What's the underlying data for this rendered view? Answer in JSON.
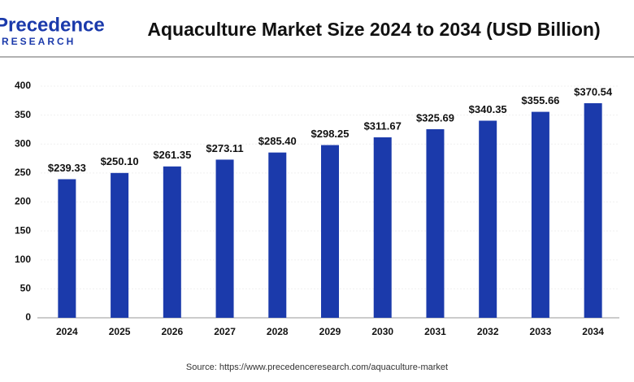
{
  "logo": {
    "name": "Precedence",
    "tagline": "RESEARCH"
  },
  "chart_data": {
    "type": "bar",
    "title": "Aquaculture Market Size 2024 to 2034 (USD Billion)",
    "source": "Source: https://www.precedenceresearch.com/aquaculture-market",
    "categories": [
      "2024",
      "2025",
      "2026",
      "2027",
      "2028",
      "2029",
      "2030",
      "2031",
      "2032",
      "2033",
      "2034"
    ],
    "values": [
      239.33,
      250.1,
      261.35,
      273.11,
      285.4,
      298.25,
      311.67,
      325.69,
      340.35,
      355.66,
      370.54
    ],
    "value_labels": [
      "$239.33",
      "$250.10",
      "$261.35",
      "$273.11",
      "$285.40",
      "$298.25",
      "$311.67",
      "$325.69",
      "$340.35",
      "$355.66",
      "$370.54"
    ],
    "color": "#1b3aab",
    "ylim": [
      0,
      400
    ],
    "yticks": [
      0,
      50,
      100,
      150,
      200,
      250,
      300,
      350,
      400
    ],
    "grid": true
  }
}
